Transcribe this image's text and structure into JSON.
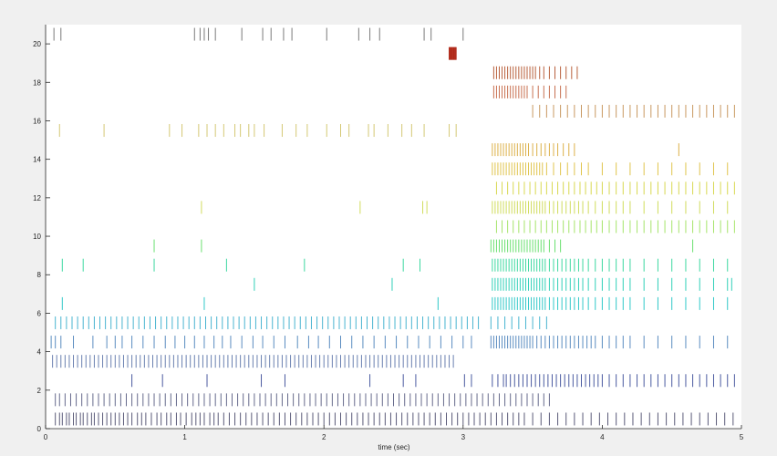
{
  "chart_data": {
    "type": "raster",
    "title": "",
    "xlabel": "time (sec)",
    "ylabel": "",
    "xlim": [
      0,
      5
    ],
    "ylim": [
      0,
      21
    ],
    "grid": false,
    "xticks": [
      "0",
      "1",
      "2",
      "3",
      "4",
      "5"
    ],
    "yticks": [
      "0",
      "2",
      "4",
      "6",
      "8",
      "10",
      "12",
      "14",
      "16",
      "18",
      "20"
    ],
    "background_color": "#ffffff",
    "figure_color": "#f0f0f0",
    "trials": [
      {
        "trial": 1,
        "color": "#5a5a78",
        "spikes": [
          0.07,
          0.1,
          0.12,
          0.15,
          0.17,
          0.2,
          0.22,
          0.25,
          0.27,
          0.3,
          0.33,
          0.35,
          0.38,
          0.41,
          0.44,
          0.47,
          0.5,
          0.53,
          0.56,
          0.59,
          0.62,
          0.66,
          0.69,
          0.72,
          0.76,
          0.8,
          0.83,
          0.87,
          0.9,
          0.94,
          0.97,
          1.01,
          1.05,
          1.08,
          1.11,
          1.14,
          1.18,
          1.21,
          1.24,
          1.28,
          1.32,
          1.36,
          1.4,
          1.44,
          1.48,
          1.52,
          1.56,
          1.6,
          1.64,
          1.68,
          1.72,
          1.76,
          1.8,
          1.84,
          1.88,
          1.92,
          1.96,
          2.0,
          2.04,
          2.08,
          2.12,
          2.16,
          2.2,
          2.24,
          2.28,
          2.32,
          2.36,
          2.4,
          2.44,
          2.48,
          2.52,
          2.56,
          2.6,
          2.64,
          2.68,
          2.72,
          2.76,
          2.8,
          2.84,
          2.88,
          2.92,
          2.96,
          3.0,
          3.04,
          3.08,
          3.12,
          3.16,
          3.2,
          3.24,
          3.28,
          3.32,
          3.36,
          3.4,
          3.44,
          3.5,
          3.56,
          3.62,
          3.68,
          3.74,
          3.8,
          3.86,
          3.92,
          3.98,
          4.04,
          4.1,
          4.16,
          4.22,
          4.28,
          4.34,
          4.4,
          4.46,
          4.52,
          4.58,
          4.64,
          4.7,
          4.76,
          4.82,
          4.88,
          4.94
        ]
      },
      {
        "trial": 2,
        "color": "#666a8c",
        "spikes": [
          0.07,
          0.1,
          0.14,
          0.18,
          0.22,
          0.26,
          0.3,
          0.34,
          0.38,
          0.42,
          0.46,
          0.5,
          0.54,
          0.58,
          0.62,
          0.66,
          0.7,
          0.74,
          0.78,
          0.82,
          0.86,
          0.9,
          0.94,
          0.98,
          1.02,
          1.06,
          1.1,
          1.14,
          1.18,
          1.22,
          1.26,
          1.3,
          1.34,
          1.38,
          1.42,
          1.46,
          1.5,
          1.54,
          1.58,
          1.62,
          1.66,
          1.7,
          1.74,
          1.78,
          1.82,
          1.86,
          1.9,
          1.94,
          1.98,
          2.02,
          2.06,
          2.1,
          2.14,
          2.18,
          2.22,
          2.26,
          2.3,
          2.34,
          2.38,
          2.42,
          2.46,
          2.5,
          2.54,
          2.58,
          2.62,
          2.66,
          2.7,
          2.74,
          2.78,
          2.82,
          2.86,
          2.9,
          2.94,
          2.98,
          3.02,
          3.06,
          3.1,
          3.14,
          3.18,
          3.22,
          3.26,
          3.3,
          3.34,
          3.38,
          3.42,
          3.46,
          3.5,
          3.54,
          3.58,
          3.62
        ]
      },
      {
        "trial": 3,
        "color": "#4a5aa0",
        "spikes": [
          0.62,
          0.84,
          1.16,
          1.55,
          1.72,
          2.33,
          2.57,
          2.66,
          3.01,
          3.06,
          3.21,
          3.25,
          3.29,
          3.31,
          3.34,
          3.37,
          3.4,
          3.43,
          3.46,
          3.49,
          3.52,
          3.55,
          3.58,
          3.61,
          3.64,
          3.67,
          3.7,
          3.73,
          3.76,
          3.79,
          3.82,
          3.85,
          3.88,
          3.91,
          3.94,
          3.97,
          4.0,
          4.05,
          4.1,
          4.15,
          4.2,
          4.25,
          4.3,
          4.35,
          4.4,
          4.45,
          4.5,
          4.55,
          4.6,
          4.65,
          4.7,
          4.75,
          4.8,
          4.85,
          4.9,
          4.95
        ]
      },
      {
        "trial": 4,
        "color": "#6a80b0",
        "spikes": [
          0.05,
          0.08,
          0.11,
          0.14,
          0.17,
          0.2,
          0.23,
          0.26,
          0.29,
          0.32,
          0.35,
          0.38,
          0.41,
          0.44,
          0.47,
          0.5,
          0.53,
          0.56,
          0.59,
          0.62,
          0.65,
          0.68,
          0.71,
          0.74,
          0.77,
          0.8,
          0.83,
          0.86,
          0.89,
          0.92,
          0.95,
          0.98,
          1.01,
          1.04,
          1.07,
          1.1,
          1.13,
          1.16,
          1.19,
          1.22,
          1.25,
          1.28,
          1.31,
          1.34,
          1.37,
          1.4,
          1.43,
          1.46,
          1.49,
          1.52,
          1.55,
          1.58,
          1.61,
          1.64,
          1.67,
          1.7,
          1.73,
          1.76,
          1.79,
          1.82,
          1.85,
          1.88,
          1.91,
          1.94,
          1.97,
          2.0,
          2.03,
          2.06,
          2.09,
          2.12,
          2.15,
          2.18,
          2.21,
          2.24,
          2.27,
          2.3,
          2.33,
          2.36,
          2.39,
          2.42,
          2.45,
          2.48,
          2.51,
          2.54,
          2.57,
          2.6,
          2.63,
          2.66,
          2.69,
          2.72,
          2.75,
          2.78,
          2.81,
          2.84,
          2.87,
          2.9,
          2.93
        ]
      },
      {
        "trial": 5,
        "color": "#5a8cc0",
        "spikes": [
          0.04,
          0.07,
          0.11,
          0.2,
          0.34,
          0.44,
          0.5,
          0.55,
          0.62,
          0.7,
          0.78,
          0.86,
          0.93,
          1.0,
          1.07,
          1.14,
          1.21,
          1.27,
          1.33,
          1.41,
          1.49,
          1.56,
          1.64,
          1.72,
          1.81,
          1.89,
          1.96,
          2.04,
          2.12,
          2.2,
          2.28,
          2.36,
          2.44,
          2.52,
          2.6,
          2.68,
          2.76,
          2.84,
          2.92,
          3.0,
          3.06,
          3.2,
          3.22,
          3.24,
          3.26,
          3.28,
          3.3,
          3.32,
          3.34,
          3.36,
          3.38,
          3.4,
          3.42,
          3.44,
          3.46,
          3.48,
          3.5,
          3.53,
          3.56,
          3.59,
          3.62,
          3.65,
          3.68,
          3.71,
          3.74,
          3.77,
          3.8,
          3.83,
          3.86,
          3.89,
          3.92,
          3.95,
          4.0,
          4.05,
          4.1,
          4.15,
          4.2,
          4.3,
          4.4,
          4.5,
          4.6,
          4.7,
          4.8,
          4.9
        ]
      },
      {
        "trial": 6,
        "color": "#48b4d0",
        "spikes": [
          0.07,
          0.11,
          0.15,
          0.19,
          0.23,
          0.27,
          0.31,
          0.35,
          0.39,
          0.43,
          0.47,
          0.51,
          0.55,
          0.59,
          0.63,
          0.67,
          0.71,
          0.75,
          0.79,
          0.83,
          0.87,
          0.91,
          0.95,
          0.99,
          1.03,
          1.07,
          1.11,
          1.15,
          1.19,
          1.23,
          1.27,
          1.31,
          1.35,
          1.39,
          1.43,
          1.47,
          1.51,
          1.55,
          1.59,
          1.63,
          1.67,
          1.71,
          1.75,
          1.79,
          1.83,
          1.87,
          1.91,
          1.95,
          1.99,
          2.03,
          2.07,
          2.11,
          2.15,
          2.19,
          2.23,
          2.27,
          2.31,
          2.35,
          2.39,
          2.43,
          2.47,
          2.51,
          2.55,
          2.59,
          2.63,
          2.67,
          2.71,
          2.75,
          2.79,
          2.83,
          2.87,
          2.91,
          2.95,
          2.99,
          3.03,
          3.07,
          3.11,
          3.2,
          3.25,
          3.3,
          3.35,
          3.4,
          3.45,
          3.5,
          3.55,
          3.6
        ]
      },
      {
        "trial": 7,
        "color": "#30c8c8",
        "spikes": [
          0.12,
          1.14,
          2.82,
          3.21,
          3.23,
          3.25,
          3.27,
          3.29,
          3.31,
          3.33,
          3.35,
          3.37,
          3.39,
          3.41,
          3.43,
          3.45,
          3.47,
          3.49,
          3.51,
          3.53,
          3.55,
          3.57,
          3.59,
          3.62,
          3.65,
          3.68,
          3.71,
          3.74,
          3.77,
          3.8,
          3.83,
          3.86,
          3.9,
          3.95,
          4.0,
          4.05,
          4.1,
          4.15,
          4.2,
          4.3,
          4.4,
          4.5,
          4.6,
          4.7,
          4.8,
          4.9
        ]
      },
      {
        "trial": 8,
        "color": "#30d0b8",
        "spikes": [
          1.5,
          2.49,
          3.21,
          3.23,
          3.25,
          3.27,
          3.29,
          3.31,
          3.33,
          3.35,
          3.37,
          3.39,
          3.41,
          3.43,
          3.45,
          3.47,
          3.49,
          3.51,
          3.53,
          3.55,
          3.57,
          3.59,
          3.62,
          3.65,
          3.68,
          3.71,
          3.74,
          3.77,
          3.8,
          3.83,
          3.86,
          3.9,
          3.95,
          4.0,
          4.05,
          4.1,
          4.15,
          4.2,
          4.3,
          4.4,
          4.5,
          4.6,
          4.7,
          4.8,
          4.9,
          4.93
        ]
      },
      {
        "trial": 9,
        "color": "#3cd8a0",
        "spikes": [
          0.12,
          0.27,
          0.78,
          1.3,
          1.86,
          2.57,
          2.69,
          3.21,
          3.23,
          3.25,
          3.27,
          3.29,
          3.31,
          3.33,
          3.35,
          3.37,
          3.39,
          3.41,
          3.43,
          3.45,
          3.47,
          3.49,
          3.51,
          3.53,
          3.55,
          3.57,
          3.59,
          3.62,
          3.65,
          3.68,
          3.71,
          3.74,
          3.77,
          3.8,
          3.83,
          3.86,
          3.9,
          3.95,
          4.0,
          4.05,
          4.1,
          4.15,
          4.2,
          4.3,
          4.4,
          4.5,
          4.6,
          4.7,
          4.8,
          4.9
        ]
      },
      {
        "trial": 10,
        "color": "#6ae070",
        "spikes": [
          0.78,
          1.12,
          3.2,
          3.22,
          3.24,
          3.26,
          3.28,
          3.3,
          3.32,
          3.34,
          3.36,
          3.38,
          3.4,
          3.42,
          3.44,
          3.46,
          3.48,
          3.5,
          3.52,
          3.54,
          3.56,
          3.58,
          3.62,
          3.66,
          3.7,
          4.65
        ]
      },
      {
        "trial": 11,
        "color": "#a6e46a",
        "spikes": [
          3.24,
          3.28,
          3.32,
          3.36,
          3.4,
          3.44,
          3.48,
          3.52,
          3.56,
          3.6,
          3.64,
          3.68,
          3.72,
          3.76,
          3.8,
          3.84,
          3.88,
          3.92,
          3.96,
          4.0,
          4.05,
          4.1,
          4.15,
          4.2,
          4.25,
          4.3,
          4.35,
          4.4,
          4.45,
          4.5,
          4.55,
          4.6,
          4.65,
          4.7,
          4.75,
          4.8,
          4.85,
          4.9,
          4.95
        ]
      },
      {
        "trial": 12,
        "color": "#d0dc5c",
        "spikes": [
          1.12,
          2.71,
          2.26,
          2.74,
          3.21,
          3.23,
          3.25,
          3.27,
          3.29,
          3.31,
          3.33,
          3.35,
          3.37,
          3.39,
          3.41,
          3.43,
          3.45,
          3.47,
          3.49,
          3.51,
          3.53,
          3.55,
          3.57,
          3.59,
          3.62,
          3.65,
          3.68,
          3.71,
          3.74,
          3.77,
          3.8,
          3.83,
          3.86,
          3.9,
          3.95,
          4.0,
          4.05,
          4.1,
          4.15,
          4.2,
          4.3,
          4.4,
          4.5,
          4.6,
          4.7,
          4.8,
          4.9
        ]
      },
      {
        "trial": 13,
        "color": "#d8d850",
        "spikes": [
          3.24,
          3.28,
          3.32,
          3.36,
          3.4,
          3.44,
          3.48,
          3.52,
          3.56,
          3.6,
          3.64,
          3.68,
          3.72,
          3.76,
          3.8,
          3.84,
          3.88,
          3.92,
          3.96,
          4.0,
          4.05,
          4.1,
          4.15,
          4.2,
          4.25,
          4.3,
          4.35,
          4.4,
          4.45,
          4.5,
          4.55,
          4.6,
          4.65,
          4.7,
          4.75,
          4.8,
          4.85,
          4.9,
          4.95
        ]
      },
      {
        "trial": 14,
        "color": "#e0c44c",
        "spikes": [
          3.21,
          3.23,
          3.25,
          3.27,
          3.29,
          3.31,
          3.33,
          3.35,
          3.37,
          3.39,
          3.41,
          3.43,
          3.45,
          3.47,
          3.49,
          3.51,
          3.53,
          3.55,
          3.57,
          3.6,
          3.65,
          3.7,
          3.75,
          3.8,
          3.85,
          3.9,
          4.0,
          4.1,
          4.2,
          4.3,
          4.4,
          4.5,
          4.6,
          4.7,
          4.8,
          4.9
        ]
      },
      {
        "trial": 15,
        "color": "#dcb048",
        "spikes": [
          3.21,
          3.23,
          3.25,
          3.27,
          3.29,
          3.31,
          3.33,
          3.35,
          3.37,
          3.39,
          3.41,
          3.43,
          3.45,
          3.47,
          3.5,
          3.53,
          3.56,
          3.59,
          3.62,
          3.65,
          3.68,
          3.72,
          3.76,
          3.8,
          4.55
        ]
      },
      {
        "trial": 16,
        "color": "#d4c874",
        "spikes": [
          0.1,
          0.42,
          0.89,
          0.98,
          1.1,
          1.16,
          1.22,
          1.28,
          1.36,
          1.4,
          1.46,
          1.5,
          1.57,
          1.7,
          1.8,
          1.88,
          2.02,
          2.12,
          2.18,
          2.32,
          2.36,
          2.46,
          2.56,
          2.63,
          2.72,
          2.9,
          2.95
        ]
      },
      {
        "trial": 17,
        "color": "#c89860",
        "spikes": [
          3.5,
          3.55,
          3.6,
          3.65,
          3.7,
          3.75,
          3.8,
          3.85,
          3.9,
          3.95,
          4.0,
          4.05,
          4.1,
          4.15,
          4.2,
          4.25,
          4.3,
          4.35,
          4.4,
          4.45,
          4.5,
          4.55,
          4.6,
          4.65,
          4.7,
          4.75,
          4.8,
          4.85,
          4.9,
          4.95
        ]
      },
      {
        "trial": 18,
        "color": "#c87050",
        "spikes": [
          3.22,
          3.24,
          3.26,
          3.28,
          3.3,
          3.32,
          3.34,
          3.36,
          3.38,
          3.4,
          3.42,
          3.44,
          3.46,
          3.5,
          3.54,
          3.58,
          3.62,
          3.66,
          3.7,
          3.74
        ]
      },
      {
        "trial": 19,
        "color": "#b8603c",
        "spikes": [
          3.22,
          3.24,
          3.26,
          3.28,
          3.3,
          3.32,
          3.34,
          3.36,
          3.38,
          3.4,
          3.42,
          3.44,
          3.46,
          3.48,
          3.5,
          3.52,
          3.55,
          3.58,
          3.62,
          3.66,
          3.7,
          3.74,
          3.78,
          3.82
        ]
      },
      {
        "trial": 20,
        "color": "#b02818",
        "spikes": [
          2.9,
          2.905,
          2.91,
          2.915,
          2.92,
          2.925,
          2.93,
          2.935,
          2.94,
          2.945,
          2.95
        ]
      },
      {
        "trial": 21,
        "color": "#7a7a7a",
        "spikes": [
          0.06,
          0.11,
          1.07,
          1.11,
          1.14,
          1.17,
          1.22,
          1.41,
          1.56,
          1.62,
          1.71,
          1.77,
          2.02,
          2.25,
          2.33,
          2.4,
          2.72,
          2.77,
          3.0
        ]
      }
    ]
  }
}
